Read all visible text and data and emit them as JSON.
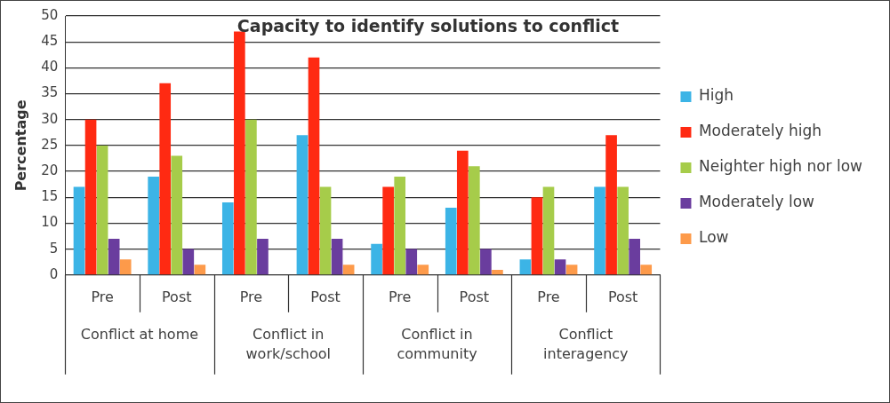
{
  "chart_data": {
    "type": "bar",
    "title": "Capacity to identify solutions to conflict",
    "ylabel": "Percentage",
    "categories": [
      "Pre",
      "Post",
      "Pre",
      "Post",
      "Pre",
      "Post",
      "Pre",
      "Post"
    ],
    "annotations": [
      "Conflict at home",
      "Conflict in work/school",
      "Conflict in community",
      "Conflict interagency"
    ],
    "series": [
      {
        "name": "High",
        "color": "#3cb4e6",
        "values": [
          17,
          19,
          14,
          27,
          6,
          13,
          3,
          17
        ]
      },
      {
        "name": "Moderately high",
        "color": "#ff2a12",
        "values": [
          30,
          37,
          47,
          42,
          17,
          24,
          15,
          27
        ]
      },
      {
        "name": "Neighter high nor low",
        "color": "#a6cc4a",
        "values": [
          25,
          23,
          30,
          17,
          19,
          21,
          17,
          17
        ]
      },
      {
        "name": "Moderately low",
        "color": "#6a3d9e",
        "values": [
          7,
          5,
          7,
          7,
          5,
          5,
          3,
          7
        ]
      },
      {
        "name": "Low",
        "color": "#fd9a4a",
        "values": [
          3,
          2,
          0,
          2,
          2,
          1,
          2,
          2
        ]
      }
    ],
    "ylim": [
      0,
      50
    ],
    "yticks": [
      0,
      5,
      10,
      15,
      20,
      25,
      30,
      35,
      40,
      45,
      50
    ],
    "grid": "y",
    "legend": "right"
  }
}
